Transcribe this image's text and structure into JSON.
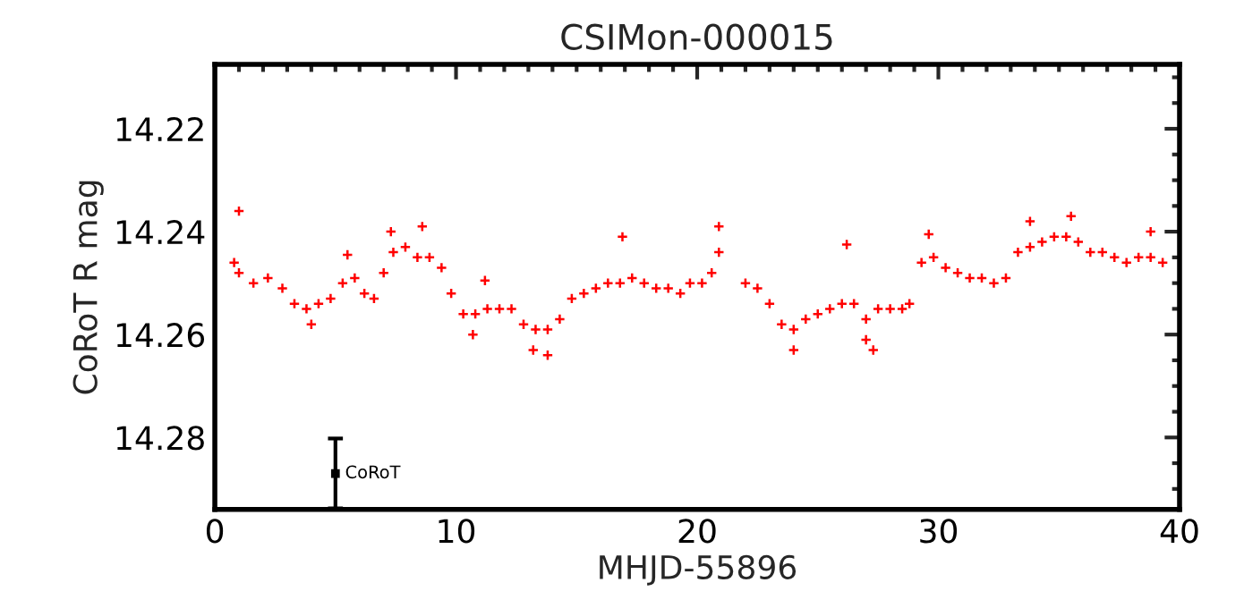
{
  "chart_data": {
    "type": "scatter",
    "title": "CSIMon-000015",
    "xlabel": "MHJD-55896",
    "ylabel": "CoRoT R mag",
    "xlim": [
      0,
      40
    ],
    "ylim": [
      14.294,
      14.2075
    ],
    "xticks": [
      0,
      {
        "value": 1,
        "label": null
      },
      {
        "value": 2,
        "label": null
      },
      {
        "value": 3,
        "label": null
      },
      {
        "value": 4,
        "label": null
      },
      {
        "value": 5,
        "label": null
      },
      {
        "value": 6,
        "label": null
      },
      {
        "value": 7,
        "label": null
      },
      {
        "value": 8,
        "label": null
      },
      {
        "value": 9,
        "label": null
      },
      10,
      {
        "value": 11,
        "label": null
      },
      {
        "value": 12,
        "label": null
      },
      {
        "value": 13,
        "label": null
      },
      {
        "value": 14,
        "label": null
      },
      {
        "value": 15,
        "label": null
      },
      {
        "value": 16,
        "label": null
      },
      {
        "value": 17,
        "label": null
      },
      {
        "value": 18,
        "label": null
      },
      {
        "value": 19,
        "label": null
      },
      20,
      {
        "value": 21,
        "label": null
      },
      {
        "value": 22,
        "label": null
      },
      {
        "value": 23,
        "label": null
      },
      {
        "value": 24,
        "label": null
      },
      {
        "value": 25,
        "label": null
      },
      {
        "value": 26,
        "label": null
      },
      {
        "value": 27,
        "label": null
      },
      {
        "value": 28,
        "label": null
      },
      {
        "value": 29,
        "label": null
      },
      30,
      {
        "value": 31,
        "label": null
      },
      {
        "value": 32,
        "label": null
      },
      {
        "value": 33,
        "label": null
      },
      {
        "value": 34,
        "label": null
      },
      {
        "value": 35,
        "label": null
      },
      {
        "value": 36,
        "label": null
      },
      {
        "value": 37,
        "label": null
      },
      {
        "value": 38,
        "label": null
      },
      {
        "value": 39,
        "label": null
      },
      40
    ],
    "yticks": [
      {
        "value": 14.21,
        "label": null
      },
      {
        "value": 14.215,
        "label": null
      },
      14.22,
      {
        "value": 14.225,
        "label": null
      },
      {
        "value": 14.23,
        "label": null
      },
      {
        "value": 14.235,
        "label": null
      },
      14.24,
      {
        "value": 14.245,
        "label": null
      },
      {
        "value": 14.25,
        "label": null
      },
      {
        "value": 14.255,
        "label": null
      },
      14.26,
      {
        "value": 14.265,
        "label": null
      },
      {
        "value": 14.27,
        "label": null
      },
      {
        "value": 14.275,
        "label": null
      },
      14.28,
      {
        "value": 14.285,
        "label": null
      },
      {
        "value": 14.29,
        "label": null
      }
    ],
    "grid": false,
    "marker": "cross",
    "series": [
      {
        "color": "#ff0000",
        "x": [
          0.8,
          1.0,
          1.6,
          2.2,
          2.8,
          3.3,
          3.8,
          4.3,
          4.8,
          5.3,
          5.8,
          6.2,
          6.6,
          7.0,
          7.4,
          7.9,
          8.4,
          8.9,
          9.4,
          9.8,
          10.3,
          10.8,
          11.3,
          11.8,
          12.3,
          12.8,
          13.3,
          13.8,
          14.3,
          14.8,
          15.3,
          15.8,
          16.3,
          16.8,
          17.3,
          17.8,
          18.3,
          18.8,
          19.3,
          19.7,
          20.2,
          20.6,
          20.9,
          22.0,
          22.5,
          23.0,
          23.5,
          24.0,
          24.5,
          25.0,
          25.5,
          26.0,
          26.5,
          27.0,
          27.5,
          28.0,
          28.5,
          28.8,
          29.3,
          29.8,
          30.3,
          30.8,
          31.3,
          31.8,
          32.3,
          32.8,
          33.3,
          33.8,
          34.3,
          34.8,
          35.3,
          35.8,
          36.3,
          36.8,
          37.3,
          37.8,
          38.3,
          38.8,
          39.3,
          1.0,
          7.3,
          8.6,
          13.2,
          13.8,
          16.9,
          20.9,
          26.2,
          27.0,
          27.3,
          29.6,
          35.5,
          33.8,
          38.8,
          4.0,
          10.7,
          11.2,
          24.0,
          5.5
        ],
        "values": [
          14.246,
          14.248,
          14.25,
          14.249,
          14.251,
          14.254,
          14.255,
          14.254,
          14.253,
          14.25,
          14.249,
          14.252,
          14.253,
          14.248,
          14.244,
          14.243,
          14.245,
          14.245,
          14.247,
          14.252,
          14.256,
          14.256,
          14.255,
          14.255,
          14.255,
          14.258,
          14.259,
          14.259,
          14.257,
          14.253,
          14.252,
          14.251,
          14.25,
          14.25,
          14.249,
          14.25,
          14.251,
          14.251,
          14.252,
          14.25,
          14.25,
          14.248,
          14.244,
          14.25,
          14.251,
          14.254,
          14.258,
          14.259,
          14.257,
          14.256,
          14.255,
          14.254,
          14.254,
          14.257,
          14.255,
          14.255,
          14.255,
          14.254,
          14.246,
          14.245,
          14.247,
          14.248,
          14.249,
          14.249,
          14.25,
          14.249,
          14.244,
          14.243,
          14.242,
          14.241,
          14.241,
          14.242,
          14.244,
          14.244,
          14.245,
          14.246,
          14.245,
          14.245,
          14.246,
          14.236,
          14.24,
          14.239,
          14.263,
          14.264,
          14.241,
          14.239,
          14.2425,
          14.261,
          14.263,
          14.2405,
          14.237,
          14.238,
          14.24,
          14.258,
          14.26,
          14.2495,
          14.263,
          14.2445
        ]
      },
      {
        "name": "CoRoT",
        "color": "#000000",
        "x": [
          5
        ],
        "values": [
          14.287
        ],
        "errors": [
          0.0068
        ],
        "marker": "square"
      }
    ]
  }
}
